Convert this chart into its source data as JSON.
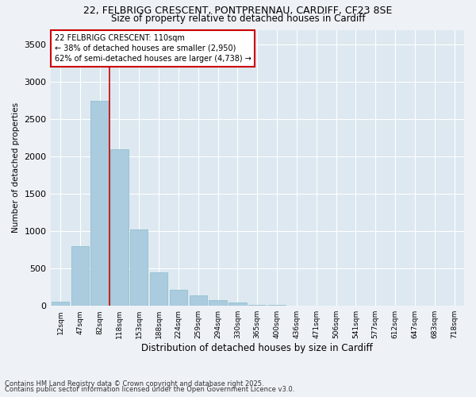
{
  "title_line1": "22, FELBRIGG CRESCENT, PONTPRENNAU, CARDIFF, CF23 8SE",
  "title_line2": "Size of property relative to detached houses in Cardiff",
  "xlabel": "Distribution of detached houses by size in Cardiff",
  "ylabel": "Number of detached properties",
  "categories": [
    "12sqm",
    "47sqm",
    "82sqm",
    "118sqm",
    "153sqm",
    "188sqm",
    "224sqm",
    "259sqm",
    "294sqm",
    "330sqm",
    "365sqm",
    "400sqm",
    "436sqm",
    "471sqm",
    "506sqm",
    "541sqm",
    "577sqm",
    "612sqm",
    "647sqm",
    "683sqm",
    "718sqm"
  ],
  "values": [
    52,
    800,
    2750,
    2100,
    1025,
    450,
    220,
    140,
    80,
    45,
    15,
    8,
    4,
    2,
    0,
    0,
    0,
    0,
    0,
    0,
    0
  ],
  "bar_color": "#aaccde",
  "bar_edge_color": "#88bbcc",
  "vline_color": "#cc0000",
  "vline_x": 2.5,
  "annotation_text": "22 FELBRIGG CRESCENT: 110sqm\n← 38% of detached houses are smaller (2,950)\n62% of semi-detached houses are larger (4,738) →",
  "annotation_box_color": "#cc0000",
  "annotation_text_color": "#000000",
  "background_color": "#eef2f7",
  "plot_background_color": "#dde8f0",
  "grid_color": "#ffffff",
  "ylim": [
    0,
    3700
  ],
  "yticks": [
    0,
    500,
    1000,
    1500,
    2000,
    2500,
    3000,
    3500
  ],
  "footer_line1": "Contains HM Land Registry data © Crown copyright and database right 2025.",
  "footer_line2": "Contains public sector information licensed under the Open Government Licence v3.0."
}
